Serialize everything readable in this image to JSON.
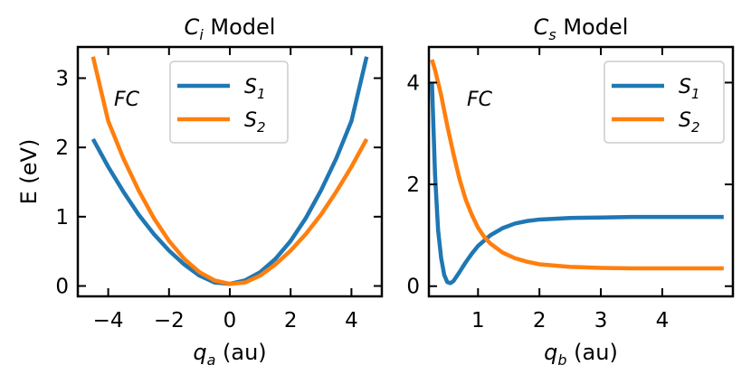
{
  "chart_data": [
    {
      "type": "line",
      "title_symbol": "C",
      "title_sub": "i",
      "title_rest": " Model",
      "xlabel_symbol": "q",
      "xlabel_sub": "a",
      "xlabel_rest": " (au)",
      "ylabel": "E (eV)",
      "xlim": [
        -5.0,
        5.0
      ],
      "ylim": [
        -0.15,
        3.45
      ],
      "xticks": [
        -4,
        -2,
        0,
        2,
        4
      ],
      "xtick_labels": [
        "−4",
        "−2",
        "0",
        "2",
        "4"
      ],
      "yticks": [
        0,
        1,
        2,
        3
      ],
      "ytick_labels": [
        "0",
        "1",
        "2",
        "3"
      ],
      "annotation": "FC",
      "legend_position": "top-right",
      "legend": [
        {
          "symbol": "S",
          "sub": "1",
          "color": "#1f77b4"
        },
        {
          "symbol": "S",
          "sub": "2",
          "color": "#ff7f0e"
        }
      ],
      "series": [
        {
          "legend_index": 0,
          "color": "#1f77b4",
          "x": [
            -4.5,
            -4.0,
            -3.5,
            -3.0,
            -2.5,
            -2.0,
            -1.5,
            -1.0,
            -0.5,
            0.0,
            0.5,
            1.0,
            1.5,
            2.0,
            2.5,
            3.0,
            3.5,
            4.0,
            4.5
          ],
          "y": [
            2.12,
            1.72,
            1.36,
            1.03,
            0.75,
            0.51,
            0.31,
            0.15,
            0.05,
            0.03,
            0.08,
            0.2,
            0.39,
            0.65,
            0.98,
            1.38,
            1.84,
            2.38,
            3.31
          ]
        },
        {
          "legend_index": 1,
          "color": "#ff7f0e",
          "x": [
            -4.5,
            -4.0,
            -3.5,
            -3.0,
            -2.5,
            -2.0,
            -1.5,
            -1.0,
            -0.5,
            0.0,
            0.5,
            1.0,
            1.5,
            2.0,
            2.5,
            3.0,
            3.5,
            4.0,
            4.5
          ],
          "y": [
            3.31,
            2.38,
            1.84,
            1.38,
            0.98,
            0.65,
            0.39,
            0.2,
            0.08,
            0.03,
            0.05,
            0.15,
            0.31,
            0.51,
            0.75,
            1.03,
            1.36,
            1.72,
            2.12
          ]
        }
      ]
    },
    {
      "type": "line",
      "title_symbol": "C",
      "title_sub": "s",
      "title_rest": " Model",
      "xlabel_symbol": "q",
      "xlabel_sub": "b",
      "xlabel_rest": " (au)",
      "ylabel": "",
      "xlim": [
        0.2,
        5.15
      ],
      "ylim": [
        -0.2,
        4.7
      ],
      "xticks": [
        1,
        2,
        3,
        4
      ],
      "xtick_labels": [
        "1",
        "2",
        "3",
        "4"
      ],
      "yticks": [
        0,
        2,
        4
      ],
      "ytick_labels": [
        "0",
        "2",
        "4"
      ],
      "annotation": "FC",
      "legend_position": "top-right",
      "legend": [
        {
          "symbol": "S",
          "sub": "1",
          "color": "#1f77b4"
        },
        {
          "symbol": "S",
          "sub": "2",
          "color": "#ff7f0e"
        }
      ],
      "series": [
        {
          "legend_index": 0,
          "color": "#1f77b4",
          "x": [
            0.25,
            0.3,
            0.35,
            0.4,
            0.45,
            0.5,
            0.55,
            0.6,
            0.7,
            0.8,
            0.9,
            1.0,
            1.2,
            1.4,
            1.6,
            1.8,
            2.0,
            2.5,
            3.0,
            3.5,
            4.0,
            4.5,
            5.0
          ],
          "y": [
            4.0,
            2.2,
            1.1,
            0.55,
            0.22,
            0.08,
            0.06,
            0.1,
            0.28,
            0.47,
            0.64,
            0.79,
            1.0,
            1.14,
            1.23,
            1.28,
            1.31,
            1.34,
            1.35,
            1.36,
            1.36,
            1.36,
            1.36
          ]
        },
        {
          "legend_index": 1,
          "color": "#ff7f0e",
          "x": [
            0.25,
            0.3,
            0.4,
            0.5,
            0.6,
            0.7,
            0.8,
            0.9,
            1.0,
            1.1,
            1.2,
            1.4,
            1.6,
            1.8,
            2.0,
            2.5,
            3.0,
            3.5,
            4.0,
            4.5,
            5.0
          ],
          "y": [
            4.45,
            4.25,
            3.75,
            3.15,
            2.6,
            2.1,
            1.7,
            1.4,
            1.15,
            0.97,
            0.84,
            0.66,
            0.55,
            0.48,
            0.43,
            0.38,
            0.36,
            0.35,
            0.35,
            0.35,
            0.35
          ]
        }
      ]
    }
  ]
}
